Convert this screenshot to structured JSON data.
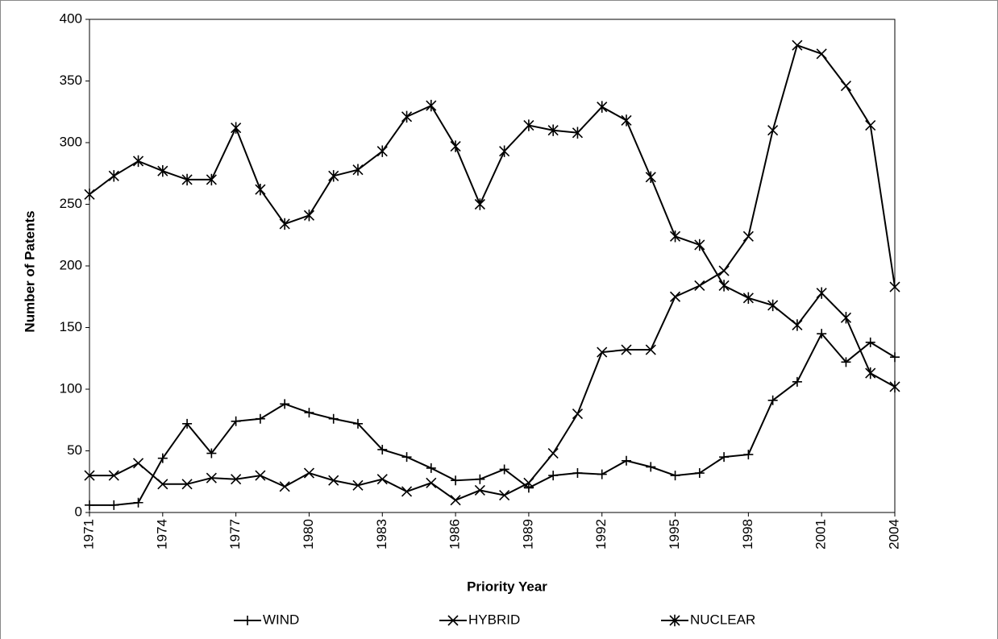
{
  "chart_data": {
    "type": "line",
    "x_label": "Priority Year",
    "y_label": "Number of Patents",
    "x": [
      1971,
      1972,
      1973,
      1974,
      1975,
      1976,
      1977,
      1978,
      1979,
      1980,
      1981,
      1982,
      1983,
      1984,
      1985,
      1986,
      1987,
      1988,
      1989,
      1990,
      1991,
      1992,
      1993,
      1994,
      1995,
      1996,
      1997,
      1998,
      1999,
      2000,
      2001,
      2002,
      2003,
      2004
    ],
    "xlim": [
      1971,
      2004
    ],
    "xticks": [
      1971,
      1974,
      1977,
      1980,
      1983,
      1986,
      1989,
      1992,
      1995,
      1998,
      2001,
      2004
    ],
    "ylim": [
      0,
      400
    ],
    "yticks": [
      0,
      50,
      100,
      150,
      200,
      250,
      300,
      350,
      400
    ],
    "grid": false,
    "legend": "bottom",
    "series": [
      {
        "name": "WIND",
        "color": "#000000",
        "marker": "plus",
        "values": [
          6,
          6,
          8,
          44,
          72,
          48,
          74,
          76,
          88,
          81,
          76,
          72,
          51,
          45,
          36,
          26,
          27,
          35,
          20,
          30,
          32,
          31,
          42,
          37,
          30,
          32,
          45,
          47,
          91,
          106,
          145,
          122,
          138,
          126
        ]
      },
      {
        "name": "HYBRID",
        "color": "#000000",
        "marker": "x",
        "values": [
          30,
          30,
          40,
          23,
          23,
          28,
          27,
          30,
          21,
          32,
          26,
          22,
          27,
          17,
          24,
          10,
          18,
          14,
          24,
          48,
          80,
          130,
          132,
          132,
          175,
          184,
          196,
          224,
          310,
          379,
          372,
          346,
          314,
          183
        ]
      },
      {
        "name": "NUCLEAR",
        "color": "#000000",
        "marker": "asterisk",
        "values": [
          258,
          273,
          285,
          277,
          270,
          270,
          312,
          262,
          234,
          241,
          273,
          278,
          293,
          321,
          330,
          297,
          250,
          293,
          314,
          310,
          308,
          329,
          318,
          272,
          224,
          217,
          184,
          174,
          168,
          152,
          178,
          158,
          113,
          102
        ]
      }
    ]
  }
}
